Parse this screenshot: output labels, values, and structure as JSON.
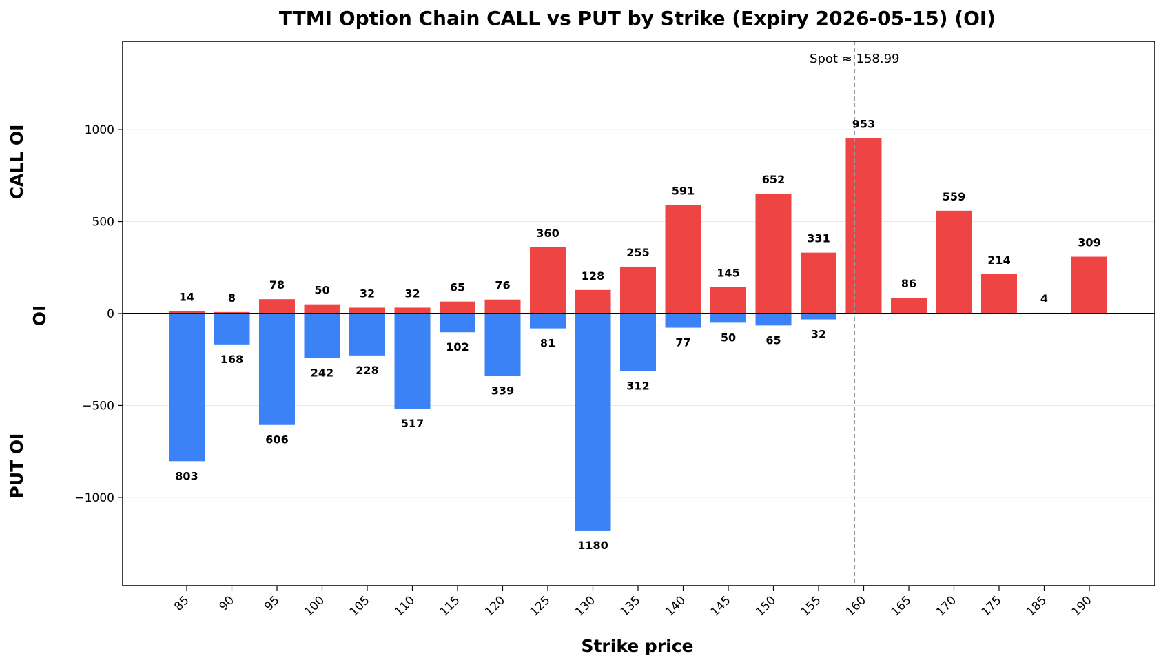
{
  "chart_data": {
    "type": "bar",
    "title": "TTMI Option Chain CALL vs PUT by Strike (Expiry 2026-05-15) (OI)",
    "xlabel": "Strike price",
    "ylabel": "OI",
    "ylabel_top": "CALL OI",
    "ylabel_bottom": "PUT OI",
    "ylim": [
      -1480,
      1480
    ],
    "yticks": [
      -1000,
      -500,
      0,
      500,
      1000
    ],
    "ytick_labels": [
      "−1000",
      "−500",
      "0",
      "500",
      "1000"
    ],
    "grid": "horizontal",
    "categories": [
      "85",
      "90",
      "95",
      "100",
      "105",
      "110",
      "115",
      "120",
      "125",
      "130",
      "135",
      "140",
      "145",
      "150",
      "155",
      "160",
      "165",
      "170",
      "175",
      "185",
      "190"
    ],
    "series": [
      {
        "key": "call",
        "color": "#ef4444",
        "values": [
          14,
          8,
          78,
          50,
          32,
          32,
          65,
          76,
          360,
          128,
          255,
          591,
          145,
          652,
          331,
          953,
          86,
          559,
          214,
          4,
          309
        ]
      },
      {
        "key": "put",
        "color": "#3b82f6",
        "values": [
          803,
          168,
          606,
          242,
          228,
          517,
          102,
          339,
          81,
          1180,
          312,
          77,
          50,
          65,
          32,
          0,
          0,
          0,
          0,
          0,
          0
        ]
      }
    ],
    "call_labels": [
      "14",
      "8",
      "78",
      "50",
      "32",
      "32",
      "65",
      "76",
      "360",
      "128",
      "255",
      "591",
      "145",
      "652",
      "331",
      "953",
      "86",
      "559",
      "214",
      "4",
      "309"
    ],
    "put_labels": [
      "803",
      "168",
      "606",
      "242",
      "228",
      "517",
      "102",
      "339",
      "81",
      "1180",
      "312",
      "77",
      "50",
      "65",
      "32",
      "",
      "",
      "",
      "",
      "",
      ""
    ],
    "spot": {
      "value": 158.99,
      "label": "Spot ≈ 158.99",
      "color": "#999999"
    }
  }
}
